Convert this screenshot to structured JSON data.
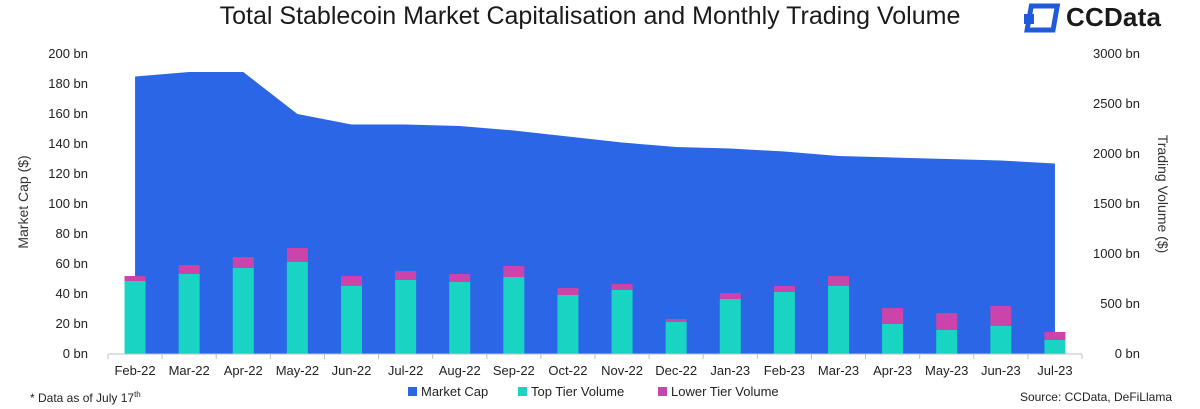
{
  "title": "Total Stablecoin Market Capitalisation and Monthly Trading Volume",
  "brand": {
    "name": "CCData",
    "icon": "ccdata-logo-icon",
    "color": "#1f5bd9"
  },
  "footnote": {
    "text": "* Data as of July 17",
    "sup": "th"
  },
  "source": "Source: CCData, DeFiLlama",
  "colors": {
    "market_cap": "#2a66e6",
    "top_tier": "#19d4c2",
    "lower_tier": "#cc44aa"
  },
  "chart_data": {
    "type": "bar",
    "title": "Total Stablecoin Market Capitalisation and Monthly Trading Volume",
    "categories": [
      "Feb-22",
      "Mar-22",
      "Apr-22",
      "May-22",
      "Jun-22",
      "Jul-22",
      "Aug-22",
      "Sep-22",
      "Oct-22",
      "Nov-22",
      "Dec-22",
      "Jan-23",
      "Feb-23",
      "Mar-23",
      "Apr-23",
      "May-23",
      "Jun-23",
      "Jul-23"
    ],
    "ylabel": "Market Cap ($)",
    "y2label": "Trading Volume ($)",
    "ylim": [
      0,
      200
    ],
    "y2lim": [
      0,
      3000
    ],
    "yticks": [
      "0 bn",
      "20 bn",
      "40 bn",
      "60 bn",
      "80 bn",
      "100 bn",
      "120 bn",
      "140 bn",
      "160 bn",
      "180 bn",
      "200 bn"
    ],
    "y2ticks": [
      "0 bn",
      "500 bn",
      "1000 bn",
      "1500 bn",
      "2000 bn",
      "2500 bn",
      "3000 bn"
    ],
    "series": [
      {
        "name": "Market Cap",
        "type": "area",
        "axis": "left",
        "values": [
          185,
          188,
          188,
          160,
          153,
          153,
          152,
          149,
          145,
          141,
          138,
          137,
          135,
          132,
          131,
          130,
          129,
          127
        ]
      },
      {
        "name": "Top Tier Volume",
        "type": "bar",
        "axis": "right",
        "stack": "volume",
        "values": [
          730,
          800,
          860,
          920,
          680,
          740,
          720,
          770,
          590,
          640,
          320,
          550,
          620,
          680,
          300,
          240,
          280,
          140
        ]
      },
      {
        "name": "Lower Tier Volume",
        "type": "bar",
        "axis": "right",
        "stack": "volume",
        "values": [
          50,
          90,
          110,
          140,
          100,
          90,
          80,
          110,
          70,
          60,
          30,
          60,
          60,
          100,
          160,
          170,
          200,
          80
        ]
      }
    ],
    "legend": {
      "position": "bottom"
    },
    "grid": false
  }
}
